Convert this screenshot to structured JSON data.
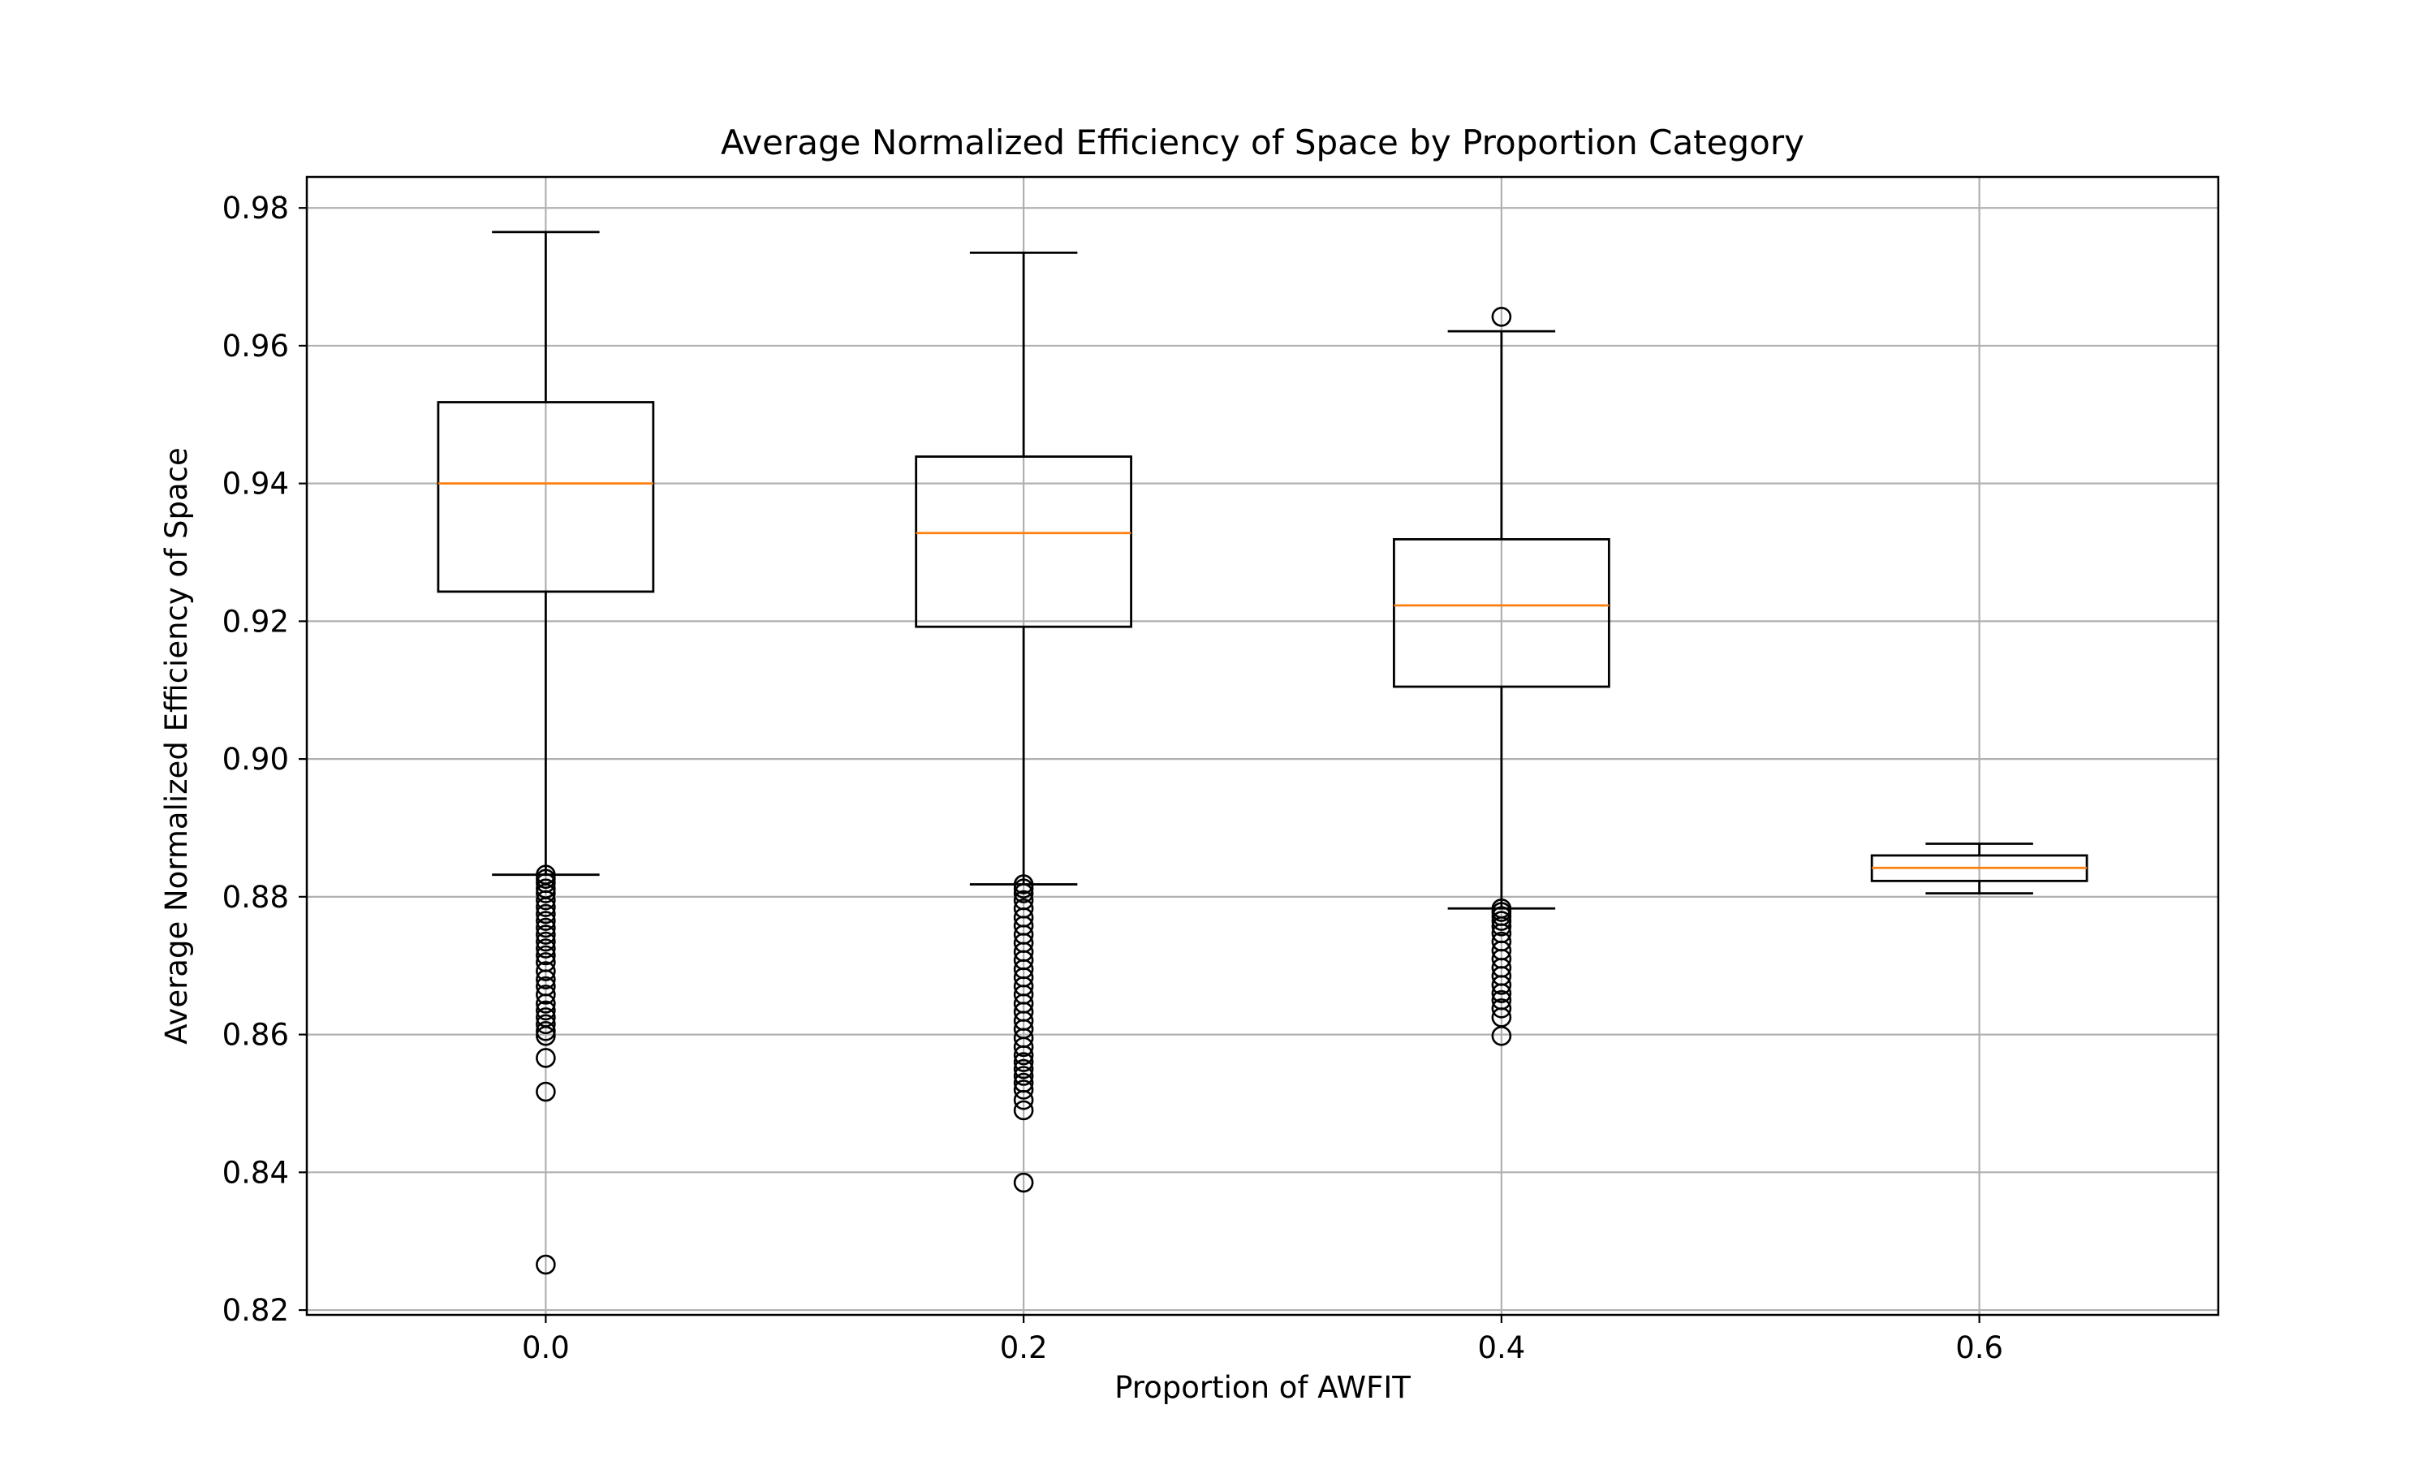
{
  "chart_data": {
    "type": "box",
    "title": "Average Normalized Efficiency of Space by Proportion Category",
    "xlabel": "Proportion of AWFIT",
    "ylabel": "Average Normalized Efficiency of Space",
    "xlim": [
      -0.1,
      0.7
    ],
    "ylim": [
      0.8193,
      0.9845
    ],
    "xticks": [
      0.0,
      0.2,
      0.4,
      0.6
    ],
    "xtick_labels": [
      "0.0",
      "0.2",
      "0.4",
      "0.6"
    ],
    "yticks": [
      0.82,
      0.84,
      0.86,
      0.88,
      0.9,
      0.92,
      0.94,
      0.96,
      0.98
    ],
    "ytick_labels": [
      "0.82",
      "0.84",
      "0.86",
      "0.88",
      "0.90",
      "0.92",
      "0.94",
      "0.96",
      "0.98"
    ],
    "grid": true,
    "colors": {
      "box": "#000000",
      "median": "#ff7f0e",
      "grid": "#b0b0b0"
    },
    "boxes": [
      {
        "category": "0.0",
        "x": 0.0,
        "whisker_low": 0.8832,
        "q1": 0.9243,
        "median": 0.94,
        "q3": 0.9518,
        "whisker_high": 0.9765,
        "outliers": [
          0.8266,
          0.8517,
          0.8566,
          0.8598,
          0.8605,
          0.8615,
          0.8625,
          0.8635,
          0.8645,
          0.8658,
          0.867,
          0.868,
          0.8692,
          0.8705,
          0.8715,
          0.8725,
          0.8735,
          0.8745,
          0.8755,
          0.8765,
          0.8775,
          0.8785,
          0.8795,
          0.8805,
          0.8812,
          0.882,
          0.8826,
          0.8832
        ]
      },
      {
        "category": "0.2",
        "x": 0.2,
        "whisker_low": 0.8818,
        "q1": 0.9192,
        "median": 0.9328,
        "q3": 0.9439,
        "whisker_high": 0.9735,
        "outliers": [
          0.8385,
          0.849,
          0.8505,
          0.852,
          0.853,
          0.854,
          0.855,
          0.856,
          0.857,
          0.8582,
          0.8595,
          0.8608,
          0.862,
          0.8633,
          0.8645,
          0.8658,
          0.867,
          0.8683,
          0.8695,
          0.8708,
          0.872,
          0.8733,
          0.8745,
          0.8758,
          0.877,
          0.8783,
          0.8795,
          0.8805,
          0.8812,
          0.8818
        ]
      },
      {
        "category": "0.4",
        "x": 0.4,
        "whisker_low": 0.8783,
        "q1": 0.9105,
        "median": 0.9223,
        "q3": 0.9319,
        "whisker_high": 0.9621,
        "outliers": [
          0.8598,
          0.8625,
          0.8638,
          0.865,
          0.866,
          0.8672,
          0.8685,
          0.8697,
          0.871,
          0.8722,
          0.8735,
          0.8747,
          0.8757,
          0.8765,
          0.8772,
          0.8778,
          0.8783,
          0.9642
        ]
      },
      {
        "category": "0.6",
        "x": 0.6,
        "whisker_low": 0.8805,
        "q1": 0.8823,
        "median": 0.8842,
        "q3": 0.886,
        "whisker_high": 0.8877,
        "outliers": []
      }
    ]
  }
}
